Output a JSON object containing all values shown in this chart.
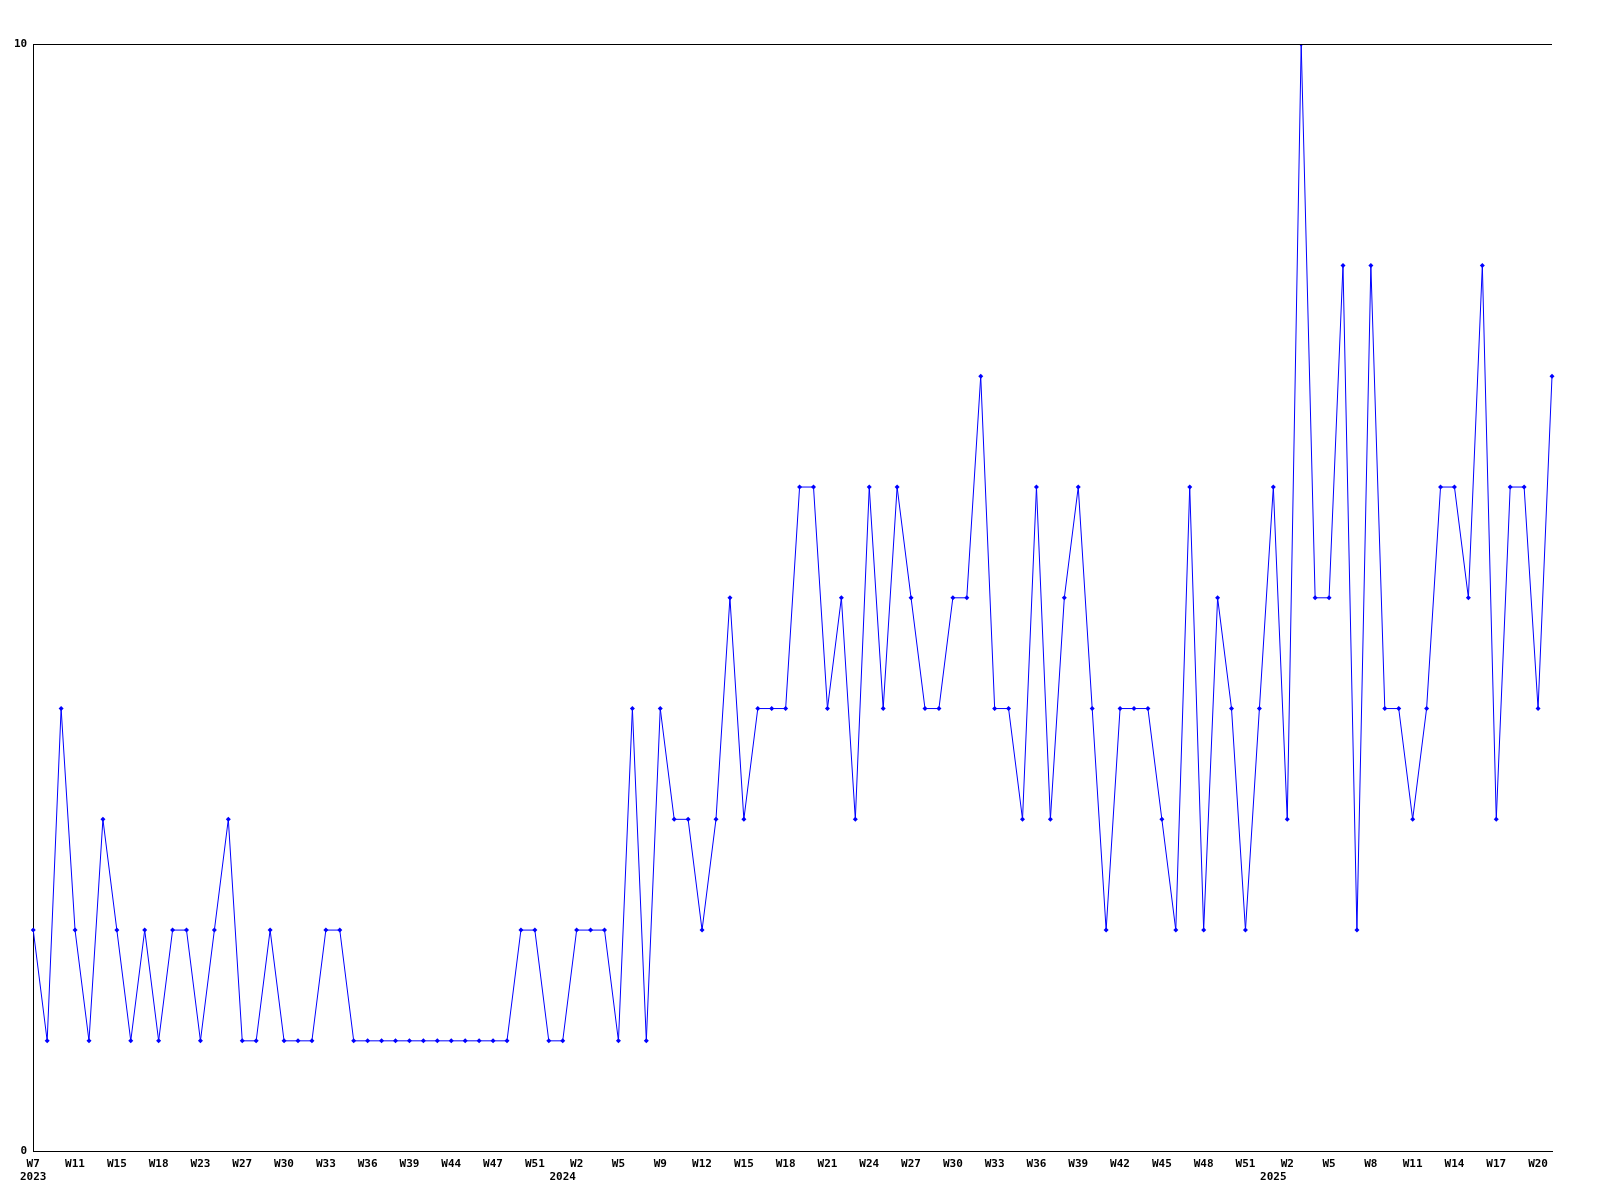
{
  "chart_data": {
    "type": "line",
    "categories": [
      "W7\n2023",
      null,
      null,
      "W11",
      null,
      null,
      "W15",
      null,
      null,
      "W18",
      null,
      null,
      "W23",
      null,
      null,
      "W27",
      null,
      null,
      "W30",
      null,
      null,
      "W33",
      null,
      null,
      "W36",
      null,
      null,
      "W39",
      null,
      null,
      "W44",
      null,
      null,
      "W47",
      null,
      null,
      "W51",
      null,
      "\n2024",
      "W2",
      null,
      null,
      "W5",
      null,
      null,
      "W9",
      null,
      null,
      "W12",
      null,
      null,
      "W15",
      null,
      null,
      "W18",
      null,
      null,
      "W21",
      null,
      null,
      "W24",
      null,
      null,
      "W27",
      null,
      null,
      "W30",
      null,
      null,
      "W33",
      null,
      null,
      "W36",
      null,
      null,
      "W39",
      null,
      null,
      "W42",
      null,
      null,
      "W45",
      null,
      null,
      "W48",
      null,
      null,
      "W51",
      null,
      "\n2025",
      "W2",
      null,
      null,
      "W5",
      null,
      null,
      "W8",
      null,
      null,
      "W11",
      null,
      null,
      "W14",
      null,
      null,
      "W17",
      null,
      null,
      "W20",
      null
    ],
    "series": [
      {
        "color": "#0000ff",
        "values": [
          2,
          1,
          4,
          2,
          1,
          3,
          2,
          1,
          2,
          1,
          2,
          2,
          1,
          2,
          3,
          1,
          1,
          2,
          1,
          1,
          1,
          2,
          2,
          1,
          1,
          1,
          1,
          1,
          1,
          1,
          1,
          1,
          1,
          1,
          1,
          2,
          2,
          1,
          1,
          2,
          2,
          2,
          1,
          4,
          1,
          4,
          3,
          3,
          2,
          3,
          5,
          3,
          4,
          4,
          4,
          6,
          6,
          4,
          5,
          3,
          6,
          4,
          6,
          5,
          4,
          4,
          5,
          5,
          7,
          4,
          4,
          3,
          6,
          3,
          5,
          6,
          4,
          2,
          4,
          4,
          4,
          3,
          2,
          6,
          2,
          5,
          4,
          2,
          4,
          6,
          3,
          10,
          5,
          5,
          8,
          2,
          8,
          4,
          4,
          3,
          4,
          6,
          6,
          5,
          8,
          3,
          6,
          6,
          4,
          7
        ]
      }
    ],
    "ylim": [
      0,
      10
    ],
    "yticks": [
      0,
      10
    ],
    "grid": false,
    "legend": false,
    "marker": "diamond",
    "line_style": "solid"
  }
}
